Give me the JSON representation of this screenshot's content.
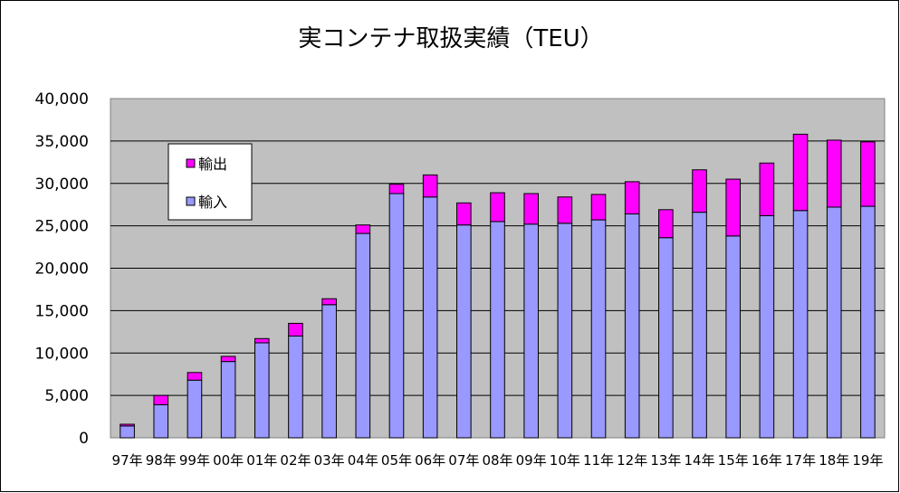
{
  "chart_data": {
    "type": "bar",
    "stacked": true,
    "title": "実コンテナ取扱実績（TEU）",
    "xlabel": "",
    "ylabel": "",
    "ylim": [
      0,
      40000
    ],
    "yticks": [
      0,
      5000,
      10000,
      15000,
      20000,
      25000,
      30000,
      35000,
      40000
    ],
    "ytick_labels": [
      "0",
      "5,000",
      "10,000",
      "15,000",
      "20,000",
      "25,000",
      "30,000",
      "35,000",
      "40,000"
    ],
    "grid": true,
    "legend_position": "upper-left inside plot",
    "categories": [
      "97年",
      "98年",
      "99年",
      "00年",
      "01年",
      "02年",
      "03年",
      "04年",
      "05年",
      "06年",
      "07年",
      "08年",
      "09年",
      "10年",
      "11年",
      "12年",
      "13年",
      "14年",
      "15年",
      "16年",
      "17年",
      "18年",
      "19年"
    ],
    "series": [
      {
        "name": "輸入",
        "color": "#9999FF",
        "values": [
          1400,
          3900,
          6800,
          9000,
          11200,
          12000,
          15700,
          24100,
          28800,
          28400,
          25100,
          25500,
          25200,
          25300,
          25700,
          26400,
          23600,
          26600,
          23800,
          26200,
          26800,
          27200,
          27300
        ]
      },
      {
        "name": "輸出",
        "color": "#FF00FF",
        "values": [
          200,
          1100,
          900,
          600,
          500,
          1500,
          700,
          1000,
          1100,
          2600,
          2600,
          3400,
          3600,
          3100,
          3000,
          3800,
          3300,
          5000,
          6700,
          6200,
          9000,
          7900,
          7600
        ]
      }
    ],
    "legend": [
      {
        "label": "輸出",
        "color": "#FF00FF"
      },
      {
        "label": "輸入",
        "color": "#9999FF"
      }
    ],
    "colors": {
      "plot_background": "#C0C0C0",
      "gridline": "#000000",
      "bar_outline": "#000000"
    }
  }
}
